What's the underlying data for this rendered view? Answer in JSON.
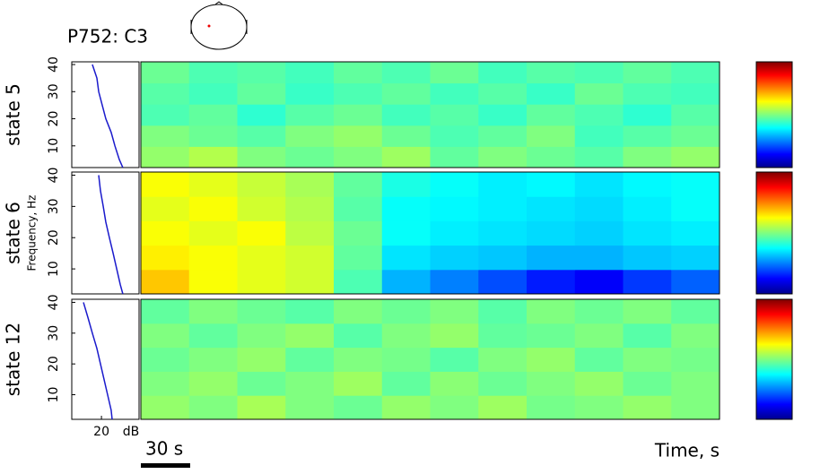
{
  "chart_data": {
    "type": "spectrogram",
    "title": "P752: C3",
    "ylabel": "Frequency, Hz",
    "xlabel_spectrum": "dB",
    "time_label": "Time, s",
    "ylim": [
      2,
      41
    ],
    "yticks": [
      10,
      20,
      30,
      40
    ],
    "spectrum_xlim": [
      5,
      39
    ],
    "spectrum_xticks": [
      20
    ],
    "time_xlim": [
      0,
      352
    ],
    "scale_bar": {
      "value": 30,
      "label": "30 s"
    },
    "clim": [
      0,
      1
    ],
    "freqs": [
      2,
      5,
      10,
      15,
      20,
      25,
      30,
      35,
      40
    ],
    "panels": [
      {
        "name": "state 5",
        "spectrum": [
          30.8,
          29.0,
          26.8,
          24.9,
          22.2,
          20.4,
          18.6,
          17.7,
          15.4
        ],
        "map": [
          [
            0.52,
            0.55,
            0.5,
            0.48,
            0.5,
            0.53,
            0.47,
            0.5,
            0.48,
            0.46,
            0.5,
            0.52
          ],
          [
            0.5,
            0.48,
            0.46,
            0.5,
            0.52,
            0.48,
            0.45,
            0.47,
            0.5,
            0.44,
            0.46,
            0.48
          ],
          [
            0.45,
            0.47,
            0.42,
            0.46,
            0.48,
            0.44,
            0.46,
            0.43,
            0.47,
            0.45,
            0.42,
            0.46
          ],
          [
            0.46,
            0.44,
            0.47,
            0.43,
            0.45,
            0.47,
            0.44,
            0.46,
            0.43,
            0.48,
            0.45,
            0.44
          ],
          [
            0.48,
            0.45,
            0.46,
            0.44,
            0.47,
            0.45,
            0.48,
            0.44,
            0.46,
            0.45,
            0.47,
            0.45
          ]
        ]
      },
      {
        "name": "state 6",
        "spectrum": [
          30.8,
          29.5,
          27.7,
          25.9,
          24.0,
          22.2,
          20.9,
          19.5,
          18.6
        ],
        "map": [
          [
            0.68,
            0.62,
            0.6,
            0.58,
            0.45,
            0.3,
            0.25,
            0.2,
            0.15,
            0.12,
            0.18,
            0.22
          ],
          [
            0.64,
            0.62,
            0.6,
            0.58,
            0.47,
            0.35,
            0.33,
            0.32,
            0.3,
            0.3,
            0.32,
            0.33
          ],
          [
            0.62,
            0.6,
            0.62,
            0.56,
            0.48,
            0.38,
            0.36,
            0.35,
            0.34,
            0.33,
            0.35,
            0.36
          ],
          [
            0.6,
            0.62,
            0.58,
            0.55,
            0.46,
            0.38,
            0.37,
            0.36,
            0.35,
            0.34,
            0.36,
            0.38
          ],
          [
            0.62,
            0.6,
            0.57,
            0.54,
            0.47,
            0.4,
            0.38,
            0.36,
            0.37,
            0.35,
            0.37,
            0.38
          ]
        ]
      },
      {
        "name": "state 12",
        "spectrum": [
          25.4,
          24.9,
          23.1,
          21.3,
          19.5,
          17.7,
          15.4,
          13.2,
          10.9
        ],
        "map": [
          [
            0.52,
            0.5,
            0.54,
            0.5,
            0.48,
            0.52,
            0.5,
            0.53,
            0.49,
            0.5,
            0.52,
            0.5
          ],
          [
            0.5,
            0.52,
            0.48,
            0.5,
            0.53,
            0.47,
            0.51,
            0.48,
            0.5,
            0.52,
            0.48,
            0.5
          ],
          [
            0.48,
            0.5,
            0.52,
            0.47,
            0.5,
            0.49,
            0.46,
            0.5,
            0.52,
            0.47,
            0.5,
            0.49
          ],
          [
            0.5,
            0.47,
            0.5,
            0.52,
            0.46,
            0.5,
            0.52,
            0.47,
            0.48,
            0.5,
            0.46,
            0.5
          ],
          [
            0.47,
            0.5,
            0.48,
            0.46,
            0.5,
            0.48,
            0.5,
            0.46,
            0.5,
            0.48,
            0.5,
            0.47
          ]
        ]
      }
    ]
  }
}
